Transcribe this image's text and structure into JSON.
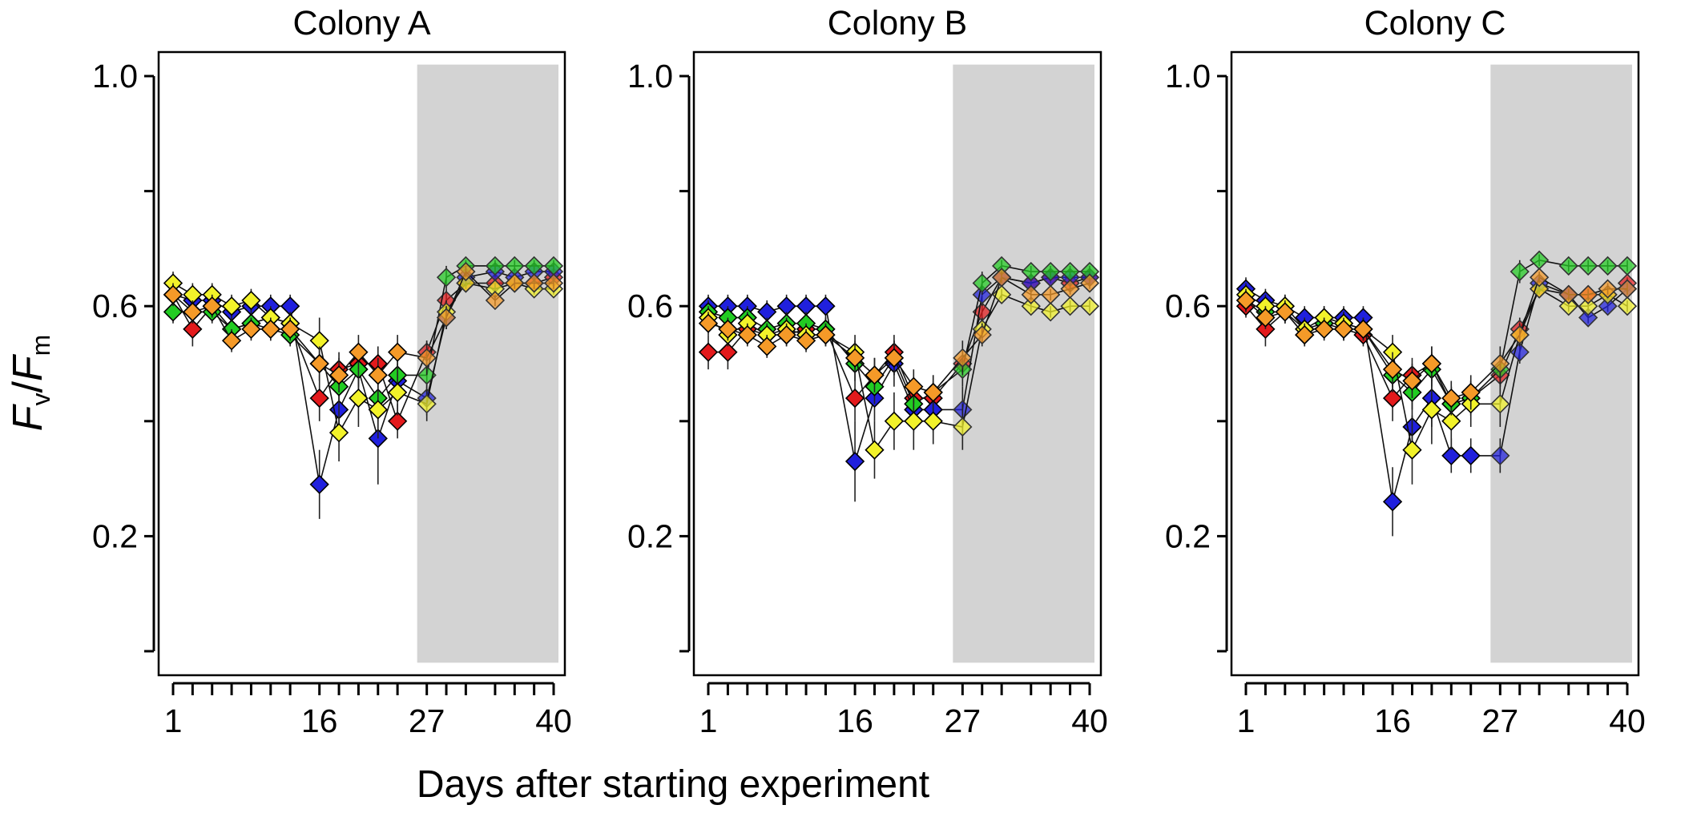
{
  "figure": {
    "xlabel": "Days after starting experiment",
    "ylabel": {
      "f": "F",
      "v": "v",
      "slash": "/",
      "m": "m"
    }
  },
  "chart_data": [
    {
      "type": "line",
      "title": "Colony A",
      "xlim": [
        0,
        41
      ],
      "ylim": [
        0,
        1.05
      ],
      "x_ticks": [
        1,
        16,
        27,
        40
      ],
      "minor_ticks": [
        1,
        3,
        5,
        7,
        9,
        11,
        13,
        16,
        18,
        20,
        22,
        24,
        27,
        29,
        31,
        34,
        36,
        38,
        40
      ],
      "y_ticks": [
        1.0,
        0.6,
        0.2
      ],
      "y_minor_ticks": [
        0.8,
        0.4,
        0.0
      ],
      "shaded_region": [
        27,
        40
      ],
      "x": [
        1,
        3,
        5,
        7,
        9,
        11,
        13,
        16,
        18,
        20,
        22,
        24,
        27,
        29,
        31,
        34,
        36,
        38,
        40
      ],
      "series": [
        {
          "color": "#e31a1c",
          "values": [
            0.62,
            0.56,
            0.6,
            0.56,
            0.57,
            0.58,
            0.57,
            0.44,
            0.49,
            0.5,
            0.5,
            0.4,
            0.52,
            0.61,
            0.64,
            0.64,
            0.64,
            0.64,
            0.65
          ],
          "errors": [
            0.02,
            0.03,
            0.02,
            0.02,
            0.02,
            0.02,
            0.02,
            0.04,
            0.03,
            0.03,
            0.03,
            0.03,
            0.02,
            0.02,
            0.01,
            0.01,
            0.01,
            0.01,
            0.01
          ]
        },
        {
          "color": "#2020dd",
          "values": [
            0.62,
            0.61,
            0.61,
            0.59,
            0.6,
            0.6,
            0.6,
            0.29,
            0.42,
            0.49,
            0.37,
            0.47,
            0.44,
            0.58,
            0.65,
            0.66,
            0.65,
            0.66,
            0.66
          ],
          "errors": [
            0.02,
            0.02,
            0.02,
            0.02,
            0.02,
            0.02,
            0.02,
            0.06,
            0.04,
            0.04,
            0.08,
            0.03,
            0.03,
            0.02,
            0.01,
            0.01,
            0.01,
            0.01,
            0.01
          ]
        },
        {
          "color": "#22cc22",
          "values": [
            0.59,
            0.59,
            0.59,
            0.56,
            0.57,
            0.56,
            0.55,
            0.5,
            0.46,
            0.49,
            0.44,
            0.48,
            0.48,
            0.65,
            0.67,
            0.67,
            0.67,
            0.67,
            0.67
          ],
          "errors": [
            0.02,
            0.02,
            0.02,
            0.02,
            0.02,
            0.02,
            0.02,
            0.03,
            0.03,
            0.03,
            0.04,
            0.03,
            0.03,
            0.02,
            0.01,
            0.01,
            0.01,
            0.01,
            0.01
          ]
        },
        {
          "color": "#f2f22a",
          "values": [
            0.64,
            0.62,
            0.62,
            0.6,
            0.61,
            0.58,
            0.57,
            0.54,
            0.38,
            0.44,
            0.42,
            0.45,
            0.43,
            0.59,
            0.64,
            0.63,
            0.64,
            0.63,
            0.63
          ],
          "errors": [
            0.02,
            0.02,
            0.02,
            0.02,
            0.02,
            0.02,
            0.02,
            0.04,
            0.05,
            0.05,
            0.05,
            0.04,
            0.03,
            0.02,
            0.01,
            0.01,
            0.01,
            0.01,
            0.01
          ]
        },
        {
          "color": "#f59a28",
          "values": [
            0.62,
            0.59,
            0.6,
            0.54,
            0.56,
            0.56,
            0.56,
            0.5,
            0.48,
            0.52,
            0.48,
            0.52,
            0.51,
            0.58,
            0.66,
            0.61,
            0.64,
            0.64,
            0.64
          ],
          "errors": [
            0.02,
            0.02,
            0.02,
            0.02,
            0.02,
            0.02,
            0.02,
            0.03,
            0.03,
            0.03,
            0.03,
            0.03,
            0.03,
            0.02,
            0.01,
            0.01,
            0.01,
            0.01,
            0.01
          ]
        }
      ]
    },
    {
      "type": "line",
      "title": "Colony B",
      "xlim": [
        0,
        41
      ],
      "ylim": [
        0,
        1.05
      ],
      "x_ticks": [
        1,
        16,
        27,
        40
      ],
      "minor_ticks": [
        1,
        3,
        5,
        7,
        9,
        11,
        13,
        16,
        18,
        20,
        22,
        24,
        27,
        29,
        31,
        34,
        36,
        38,
        40
      ],
      "y_ticks": [
        1.0,
        0.6,
        0.2
      ],
      "y_minor_ticks": [
        0.8,
        0.4,
        0.0
      ],
      "shaded_region": [
        27,
        40
      ],
      "x": [
        1,
        3,
        5,
        7,
        9,
        11,
        13,
        16,
        18,
        20,
        22,
        24,
        27,
        29,
        31,
        34,
        36,
        38,
        40
      ],
      "series": [
        {
          "color": "#e31a1c",
          "values": [
            0.52,
            0.52,
            0.56,
            0.55,
            0.55,
            0.56,
            0.56,
            0.44,
            0.48,
            0.52,
            0.44,
            0.44,
            0.5,
            0.59,
            0.65,
            0.64,
            0.65,
            0.64,
            0.65
          ],
          "errors": [
            0.03,
            0.03,
            0.02,
            0.02,
            0.02,
            0.02,
            0.02,
            0.04,
            0.03,
            0.03,
            0.03,
            0.03,
            0.02,
            0.02,
            0.01,
            0.01,
            0.01,
            0.01,
            0.01
          ]
        },
        {
          "color": "#2020dd",
          "values": [
            0.6,
            0.6,
            0.6,
            0.59,
            0.6,
            0.6,
            0.6,
            0.33,
            0.44,
            0.5,
            0.42,
            0.42,
            0.42,
            0.62,
            0.65,
            0.64,
            0.65,
            0.65,
            0.65
          ],
          "errors": [
            0.02,
            0.02,
            0.02,
            0.02,
            0.02,
            0.02,
            0.02,
            0.07,
            0.04,
            0.04,
            0.04,
            0.04,
            0.04,
            0.02,
            0.01,
            0.01,
            0.01,
            0.01,
            0.01
          ]
        },
        {
          "color": "#22cc22",
          "values": [
            0.59,
            0.58,
            0.58,
            0.56,
            0.57,
            0.57,
            0.56,
            0.5,
            0.46,
            0.51,
            0.43,
            0.45,
            0.49,
            0.64,
            0.67,
            0.66,
            0.66,
            0.66,
            0.66
          ],
          "errors": [
            0.02,
            0.02,
            0.02,
            0.02,
            0.02,
            0.02,
            0.02,
            0.03,
            0.03,
            0.03,
            0.03,
            0.03,
            0.03,
            0.02,
            0.01,
            0.01,
            0.01,
            0.01,
            0.01
          ]
        },
        {
          "color": "#f2f22a",
          "values": [
            0.58,
            0.55,
            0.57,
            0.55,
            0.56,
            0.55,
            0.55,
            0.52,
            0.35,
            0.4,
            0.4,
            0.4,
            0.39,
            0.56,
            0.62,
            0.6,
            0.59,
            0.6,
            0.6
          ],
          "errors": [
            0.02,
            0.02,
            0.02,
            0.02,
            0.02,
            0.02,
            0.02,
            0.03,
            0.05,
            0.05,
            0.05,
            0.04,
            0.04,
            0.02,
            0.01,
            0.01,
            0.01,
            0.01,
            0.01
          ]
        },
        {
          "color": "#f59a28",
          "values": [
            0.57,
            0.56,
            0.55,
            0.53,
            0.55,
            0.54,
            0.55,
            0.51,
            0.48,
            0.51,
            0.46,
            0.45,
            0.51,
            0.55,
            0.65,
            0.62,
            0.62,
            0.63,
            0.64
          ],
          "errors": [
            0.02,
            0.02,
            0.02,
            0.02,
            0.02,
            0.02,
            0.02,
            0.03,
            0.03,
            0.03,
            0.03,
            0.03,
            0.03,
            0.02,
            0.01,
            0.01,
            0.01,
            0.01,
            0.01
          ]
        }
      ]
    },
    {
      "type": "line",
      "title": "Colony C",
      "xlim": [
        0,
        41
      ],
      "ylim": [
        0,
        1.05
      ],
      "x_ticks": [
        1,
        16,
        27,
        40
      ],
      "minor_ticks": [
        1,
        3,
        5,
        7,
        9,
        11,
        13,
        16,
        18,
        20,
        22,
        24,
        27,
        29,
        31,
        34,
        36,
        38,
        40
      ],
      "y_ticks": [
        1.0,
        0.6,
        0.2
      ],
      "y_minor_ticks": [
        0.8,
        0.4,
        0.0
      ],
      "shaded_region": [
        27,
        40
      ],
      "x": [
        1,
        3,
        5,
        7,
        9,
        11,
        13,
        16,
        18,
        20,
        22,
        24,
        27,
        29,
        31,
        34,
        36,
        38,
        40
      ],
      "series": [
        {
          "color": "#e31a1c",
          "values": [
            0.6,
            0.56,
            0.59,
            0.55,
            0.57,
            0.56,
            0.55,
            0.44,
            0.48,
            0.5,
            0.43,
            0.44,
            0.48,
            0.56,
            0.63,
            0.62,
            0.62,
            0.62,
            0.64
          ],
          "errors": [
            0.02,
            0.03,
            0.02,
            0.02,
            0.02,
            0.02,
            0.02,
            0.04,
            0.03,
            0.03,
            0.03,
            0.03,
            0.02,
            0.02,
            0.01,
            0.01,
            0.01,
            0.01,
            0.01
          ]
        },
        {
          "color": "#2020dd",
          "values": [
            0.63,
            0.61,
            0.6,
            0.58,
            0.58,
            0.58,
            0.58,
            0.26,
            0.39,
            0.44,
            0.34,
            0.34,
            0.34,
            0.52,
            0.64,
            0.62,
            0.58,
            0.6,
            0.63
          ],
          "errors": [
            0.02,
            0.02,
            0.02,
            0.02,
            0.02,
            0.02,
            0.02,
            0.06,
            0.05,
            0.05,
            0.03,
            0.03,
            0.03,
            0.02,
            0.01,
            0.01,
            0.01,
            0.01,
            0.01
          ]
        },
        {
          "color": "#22cc22",
          "values": [
            0.61,
            0.59,
            0.59,
            0.56,
            0.57,
            0.57,
            0.56,
            0.48,
            0.45,
            0.49,
            0.43,
            0.44,
            0.49,
            0.66,
            0.68,
            0.67,
            0.67,
            0.67,
            0.67
          ],
          "errors": [
            0.02,
            0.02,
            0.02,
            0.02,
            0.02,
            0.02,
            0.02,
            0.03,
            0.03,
            0.03,
            0.03,
            0.03,
            0.03,
            0.02,
            0.01,
            0.01,
            0.01,
            0.01,
            0.01
          ]
        },
        {
          "color": "#f2f22a",
          "values": [
            0.62,
            0.6,
            0.6,
            0.56,
            0.58,
            0.57,
            0.56,
            0.52,
            0.35,
            0.42,
            0.4,
            0.43,
            0.43,
            0.55,
            0.63,
            0.6,
            0.6,
            0.62,
            0.6
          ],
          "errors": [
            0.02,
            0.02,
            0.02,
            0.02,
            0.02,
            0.02,
            0.02,
            0.03,
            0.06,
            0.06,
            0.05,
            0.04,
            0.04,
            0.02,
            0.01,
            0.01,
            0.01,
            0.01,
            0.01
          ]
        },
        {
          "color": "#f59a28",
          "values": [
            0.61,
            0.58,
            0.59,
            0.55,
            0.56,
            0.56,
            0.56,
            0.49,
            0.47,
            0.5,
            0.44,
            0.45,
            0.5,
            0.55,
            0.65,
            0.62,
            0.62,
            0.63,
            0.63
          ],
          "errors": [
            0.02,
            0.02,
            0.02,
            0.02,
            0.02,
            0.02,
            0.02,
            0.03,
            0.03,
            0.03,
            0.03,
            0.03,
            0.03,
            0.02,
            0.01,
            0.01,
            0.01,
            0.01,
            0.01
          ]
        }
      ]
    }
  ]
}
